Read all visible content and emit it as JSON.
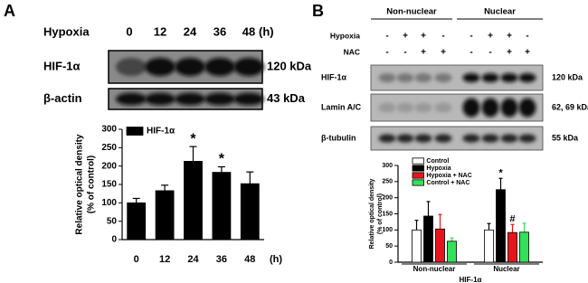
{
  "panel_a": {
    "letter": "A",
    "row_header": "Hypoxia",
    "time_points": [
      "0",
      "12",
      "24",
      "36",
      "48"
    ],
    "unit": "(h)",
    "blots": [
      {
        "label": "HIF-1α",
        "size": "120 kDa"
      },
      {
        "label": "β-actin",
        "size": "43 kDa"
      }
    ]
  },
  "panel_b": {
    "letter": "B",
    "groups": [
      "Non-nuclear",
      "Nuclear"
    ],
    "conditions": [
      {
        "label": "Hypoxia",
        "signs": [
          "-",
          "+",
          "+",
          "-",
          "-",
          "+",
          "+",
          "-"
        ]
      },
      {
        "label": "NAC",
        "signs": [
          "-",
          "-",
          "+",
          "+",
          "-",
          "-",
          "+",
          "+"
        ]
      }
    ],
    "blots": [
      {
        "label": "HIF-1α",
        "size": "120 kDa"
      },
      {
        "label": "Lamin A/C",
        "size": "62, 69 kDa"
      },
      {
        "label": "β-tubulin",
        "size": "55 kDa"
      }
    ]
  },
  "chart_data": [
    {
      "type": "bar",
      "categories": [
        "0",
        "12",
        "24",
        "36",
        "48"
      ],
      "xlabel": "(h)",
      "ylabel": [
        "Relative optical density",
        "(% of control)"
      ],
      "series": [
        {
          "name": "HIF-1α",
          "color": "#000000",
          "values": [
            100,
            133,
            213,
            183,
            152
          ],
          "errors": [
            12,
            15,
            40,
            15,
            32
          ],
          "annotations": [
            null,
            null,
            "*",
            "*",
            null
          ]
        }
      ],
      "ylim": [
        0,
        300
      ],
      "yticks": [
        0,
        50,
        100,
        150,
        200,
        250,
        300
      ]
    },
    {
      "type": "bar",
      "categories": [
        "Non-nuclear",
        "Nuclear"
      ],
      "xlabel": "HIF-1α",
      "ylabel": [
        "Relative optical density",
        "(% of control)"
      ],
      "series": [
        {
          "name": "Control",
          "color": "#ffffff",
          "values": [
            100,
            100
          ],
          "errors": [
            30,
            20
          ],
          "annotations": [
            null,
            null
          ]
        },
        {
          "name": "Hypoxia",
          "color": "#000000",
          "values": [
            143,
            225
          ],
          "errors": [
            45,
            35
          ],
          "annotations": [
            null,
            "*"
          ]
        },
        {
          "name": "Hypoxia + NAC",
          "color": "#e8141c",
          "values": [
            103,
            92
          ],
          "errors": [
            45,
            25
          ],
          "annotations": [
            null,
            "#"
          ]
        },
        {
          "name": "Control + NAC",
          "color": "#33e05a",
          "values": [
            65,
            93
          ],
          "errors": [
            10,
            28
          ],
          "annotations": [
            null,
            null
          ]
        }
      ],
      "ylim": [
        0,
        300
      ],
      "yticks": [
        0,
        50,
        100,
        150,
        200,
        250,
        300
      ]
    }
  ]
}
